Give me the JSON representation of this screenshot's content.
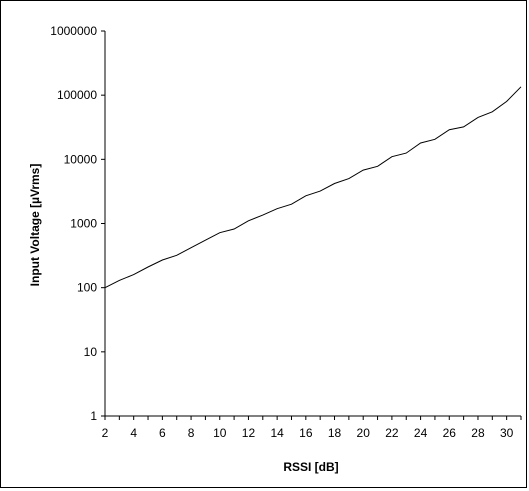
{
  "chart_data": {
    "type": "line",
    "title": "",
    "xlabel": "RSSI [dB]",
    "ylabel": "Input Voltage [µVrms]",
    "xlim": [
      2,
      31
    ],
    "ylim": [
      1,
      1000000
    ],
    "yscale": "log",
    "grid": false,
    "legend": "none",
    "line_color": "#000000",
    "x_ticks": [
      2,
      4,
      6,
      8,
      10,
      12,
      14,
      16,
      18,
      20,
      22,
      24,
      26,
      28,
      30
    ],
    "y_ticks": [
      1,
      10,
      100,
      1000,
      10000,
      100000,
      1000000
    ],
    "y_tick_labels": [
      "1",
      "10",
      "100",
      "1000",
      "10000",
      "100000",
      "1000000"
    ],
    "series": [
      {
        "x": [
          2,
          3,
          4,
          5,
          6,
          7,
          8,
          9,
          10,
          11,
          12,
          13,
          14,
          15,
          16,
          17,
          18,
          19,
          20,
          21,
          22,
          23,
          24,
          25,
          26,
          27,
          28,
          29,
          30,
          31
        ],
        "values": [
          100,
          130,
          160,
          210,
          270,
          320,
          420,
          550,
          720,
          820,
          1100,
          1350,
          1700,
          2000,
          2700,
          3200,
          4200,
          5000,
          6800,
          7800,
          11000,
          12500,
          18000,
          20500,
          29000,
          32000,
          45000,
          55000,
          80000,
          135000
        ]
      }
    ]
  }
}
